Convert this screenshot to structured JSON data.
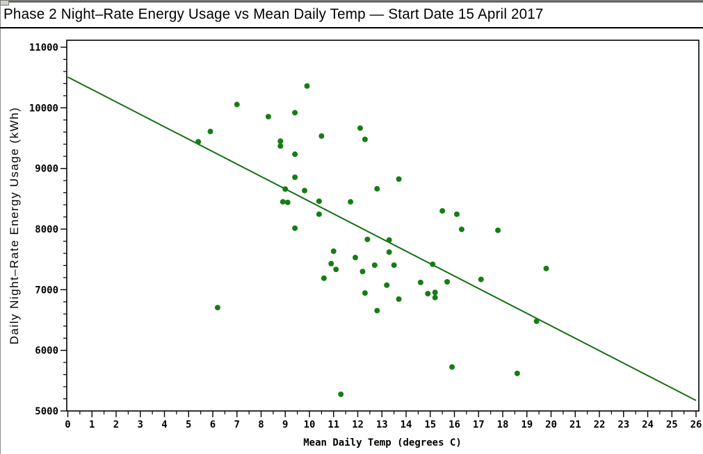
{
  "chart_data": {
    "type": "scatter",
    "title": "Phase 2 Night–Rate Energy Usage vs Mean Daily Temp — Start Date 15 April 2017",
    "xlabel": "Mean Daily Temp (degrees C)",
    "ylabel": "Daily Night–Rate Energy Usage (kWh)",
    "xlim": [
      0,
      26
    ],
    "ylim": [
      5000,
      11000
    ],
    "x_ticks": [
      0,
      1,
      2,
      3,
      4,
      5,
      6,
      7,
      8,
      9,
      10,
      11,
      12,
      13,
      14,
      15,
      16,
      17,
      18,
      19,
      20,
      21,
      22,
      23,
      24,
      25,
      26
    ],
    "y_ticks": [
      5000,
      6000,
      7000,
      8000,
      9000,
      10000,
      11000
    ],
    "x_minor_step": 0.5,
    "y_minor_step": 200,
    "grid": false,
    "legend": "none",
    "marker_color": "#157d15",
    "line_color": "#116f11",
    "axis_color": "#000000",
    "trend_line": {
      "x_start": 0,
      "y_start": 10508,
      "x_end": 26,
      "y_end": 5173
    },
    "points": [
      [
        5.4,
        9440
      ],
      [
        5.9,
        9610
      ],
      [
        6.2,
        6705
      ],
      [
        7.0,
        10055
      ],
      [
        8.3,
        9855
      ],
      [
        8.8,
        9450
      ],
      [
        8.8,
        9370
      ],
      [
        9.0,
        8660
      ],
      [
        8.9,
        8450
      ],
      [
        9.1,
        8440
      ],
      [
        9.9,
        10360
      ],
      [
        9.4,
        9920
      ],
      [
        9.4,
        9235
      ],
      [
        9.4,
        8855
      ],
      [
        9.8,
        8635
      ],
      [
        9.4,
        8015
      ],
      [
        10.5,
        9535
      ],
      [
        10.4,
        8460
      ],
      [
        10.4,
        8245
      ],
      [
        10.6,
        7190
      ],
      [
        11.0,
        7635
      ],
      [
        10.9,
        7430
      ],
      [
        11.1,
        7335
      ],
      [
        11.3,
        5275
      ],
      [
        11.7,
        8450
      ],
      [
        11.9,
        7530
      ],
      [
        12.1,
        9665
      ],
      [
        12.3,
        9480
      ],
      [
        12.2,
        7300
      ],
      [
        12.3,
        6945
      ],
      [
        12.4,
        7830
      ],
      [
        12.7,
        7405
      ],
      [
        12.8,
        6655
      ],
      [
        12.8,
        8665
      ],
      [
        13.2,
        7075
      ],
      [
        13.3,
        7820
      ],
      [
        13.3,
        7620
      ],
      [
        13.5,
        7405
      ],
      [
        13.7,
        8825
      ],
      [
        13.7,
        6845
      ],
      [
        14.6,
        7120
      ],
      [
        14.9,
        6935
      ],
      [
        15.1,
        7420
      ],
      [
        15.2,
        6955
      ],
      [
        15.2,
        6870
      ],
      [
        15.5,
        8300
      ],
      [
        15.7,
        7130
      ],
      [
        15.9,
        5725
      ],
      [
        16.1,
        8245
      ],
      [
        16.3,
        7995
      ],
      [
        17.1,
        7170
      ],
      [
        17.8,
        7980
      ],
      [
        18.6,
        5620
      ],
      [
        19.4,
        6480
      ],
      [
        19.8,
        7350
      ]
    ]
  }
}
